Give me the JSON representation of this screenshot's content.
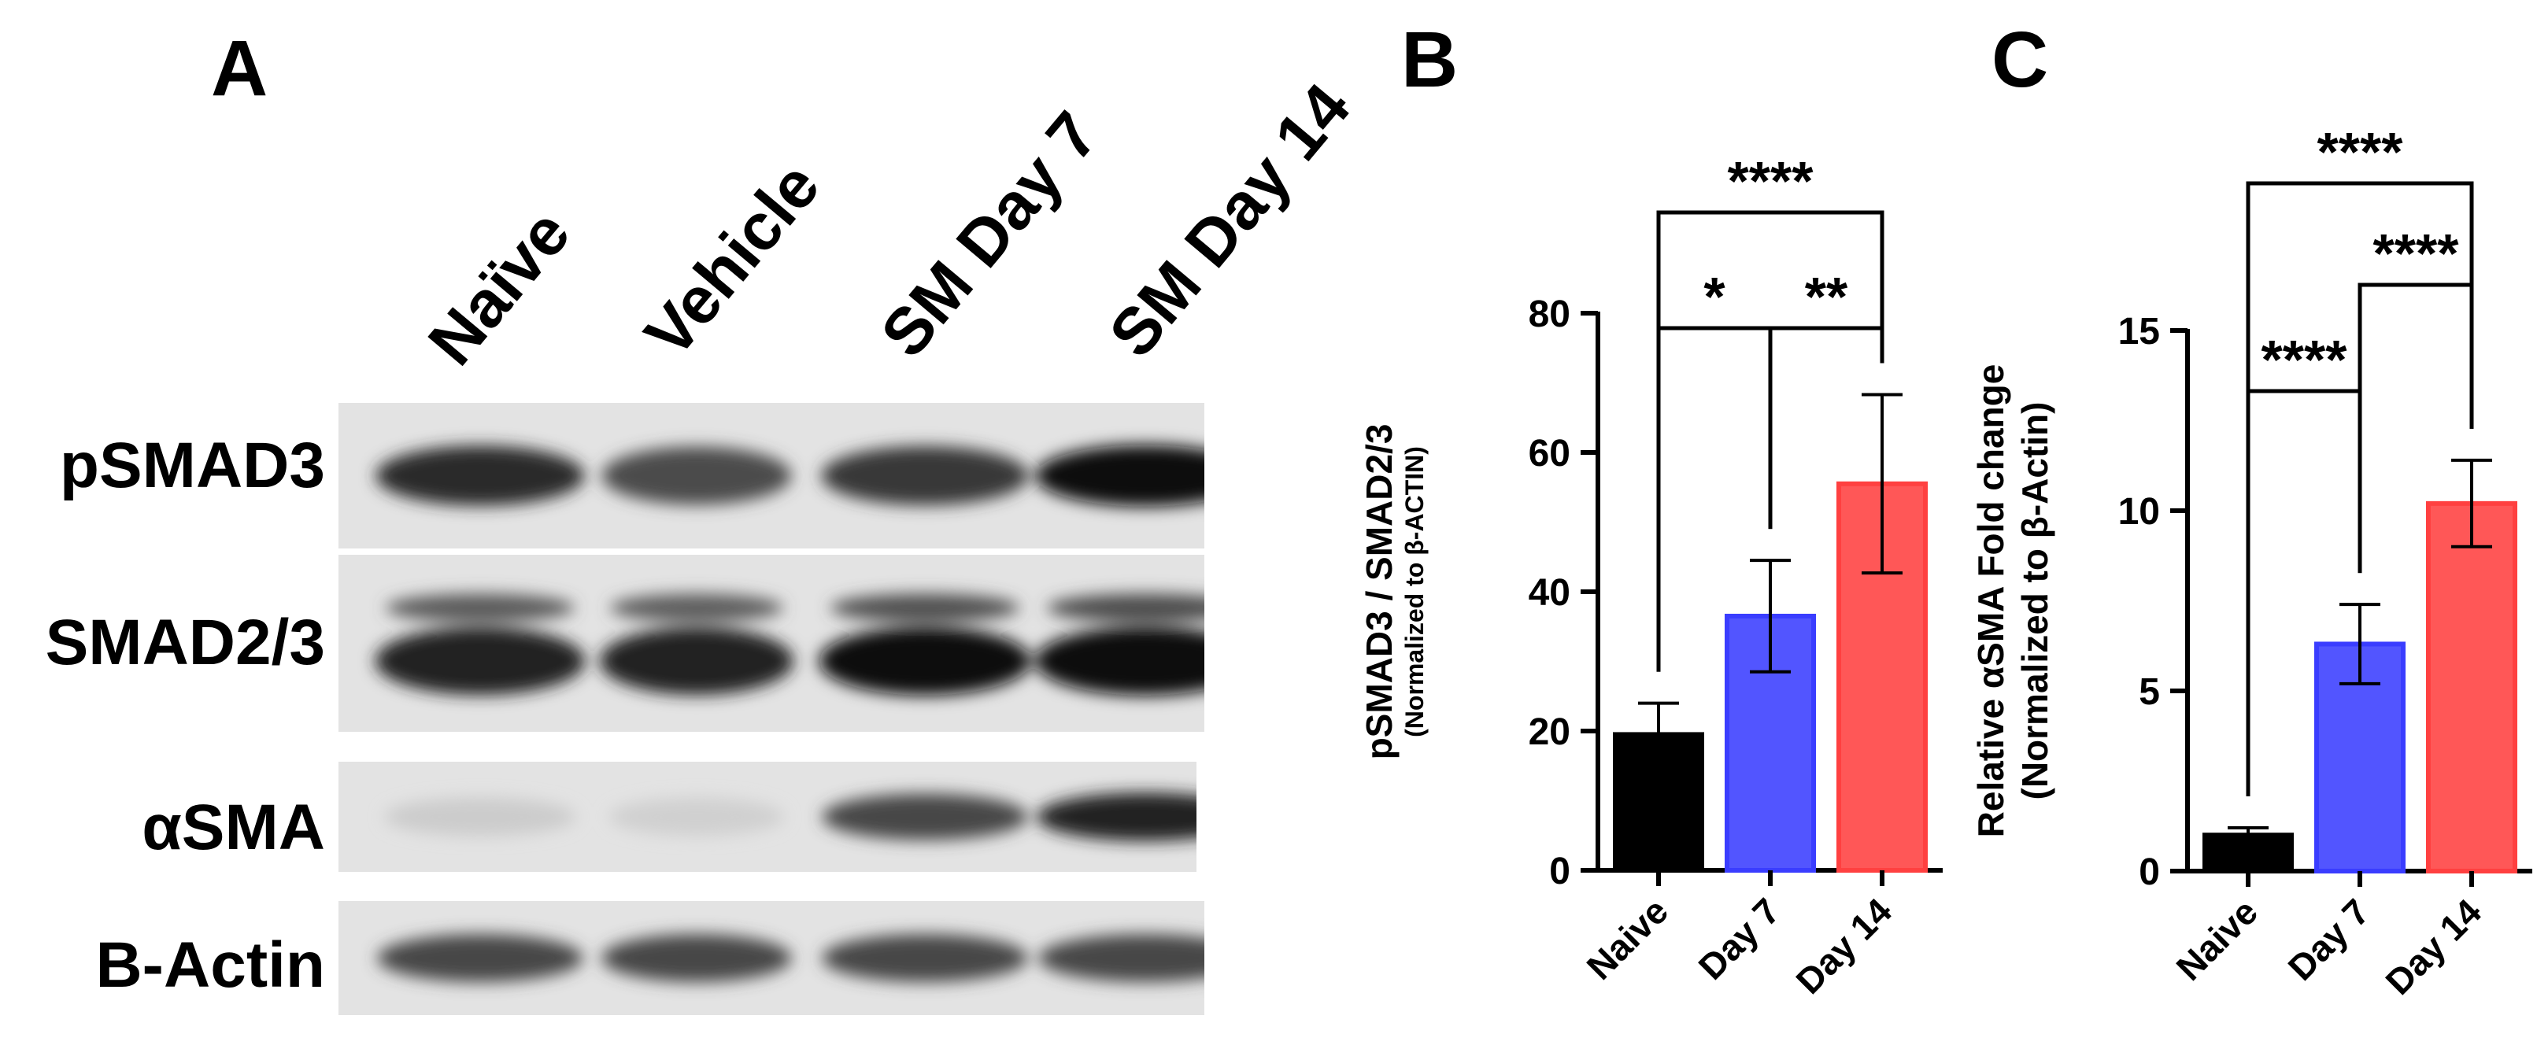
{
  "panel_A": {
    "letter": "A",
    "lanes": [
      "Naïve",
      "Vehicle",
      "SM Day 7",
      "SM Day 14"
    ],
    "proteins": [
      "pSMAD3",
      "SMAD2/3",
      "αSMA",
      "B-Actin"
    ],
    "band_intensity": [
      [
        0.85,
        0.7,
        0.78,
        0.98
      ],
      [
        0.9,
        0.88,
        0.97,
        1.0
      ],
      [
        0.1,
        0.08,
        0.72,
        0.88
      ],
      [
        0.72,
        0.72,
        0.72,
        0.72
      ]
    ]
  },
  "chart_data": [
    {
      "panel": "B",
      "type": "bar",
      "ylabel": "pSMAD3 / SMAD2/3",
      "ylabel_sub": "(Normalized to β-ACTIN)",
      "categories": [
        "Naive",
        "Day 7",
        "Day 14"
      ],
      "values": [
        19.5,
        36.5,
        55.5
      ],
      "errors": [
        4.5,
        8.0,
        12.8
      ],
      "colors": [
        "#000000",
        "#3a3dff",
        "#ff4040"
      ],
      "ylim": [
        0,
        80
      ],
      "yticks": [
        0,
        20,
        40,
        60,
        80
      ],
      "significance": [
        {
          "from": 0,
          "to": 1,
          "label": "*",
          "level": 0
        },
        {
          "from": 1,
          "to": 2,
          "label": "**",
          "level": 0
        },
        {
          "from": 0,
          "to": 2,
          "label": "****",
          "level": 1
        }
      ]
    },
    {
      "panel": "C",
      "type": "bar",
      "ylabel": "Relative αSMA Fold change",
      "ylabel_sub": "(Normalized to β-Actin)",
      "categories": [
        "Naive",
        "Day 7",
        "Day 14"
      ],
      "values": [
        1.0,
        6.3,
        10.2
      ],
      "errors": [
        0.2,
        1.1,
        1.2
      ],
      "colors": [
        "#000000",
        "#3a3dff",
        "#ff4040"
      ],
      "ylim": [
        0,
        15
      ],
      "yticks": [
        0,
        5,
        10,
        15
      ],
      "significance": [
        {
          "from": 0,
          "to": 1,
          "label": "****",
          "level": 0
        },
        {
          "from": 1,
          "to": 2,
          "label": "****",
          "level": 1
        },
        {
          "from": 0,
          "to": 2,
          "label": "****",
          "level": 2
        }
      ]
    }
  ]
}
